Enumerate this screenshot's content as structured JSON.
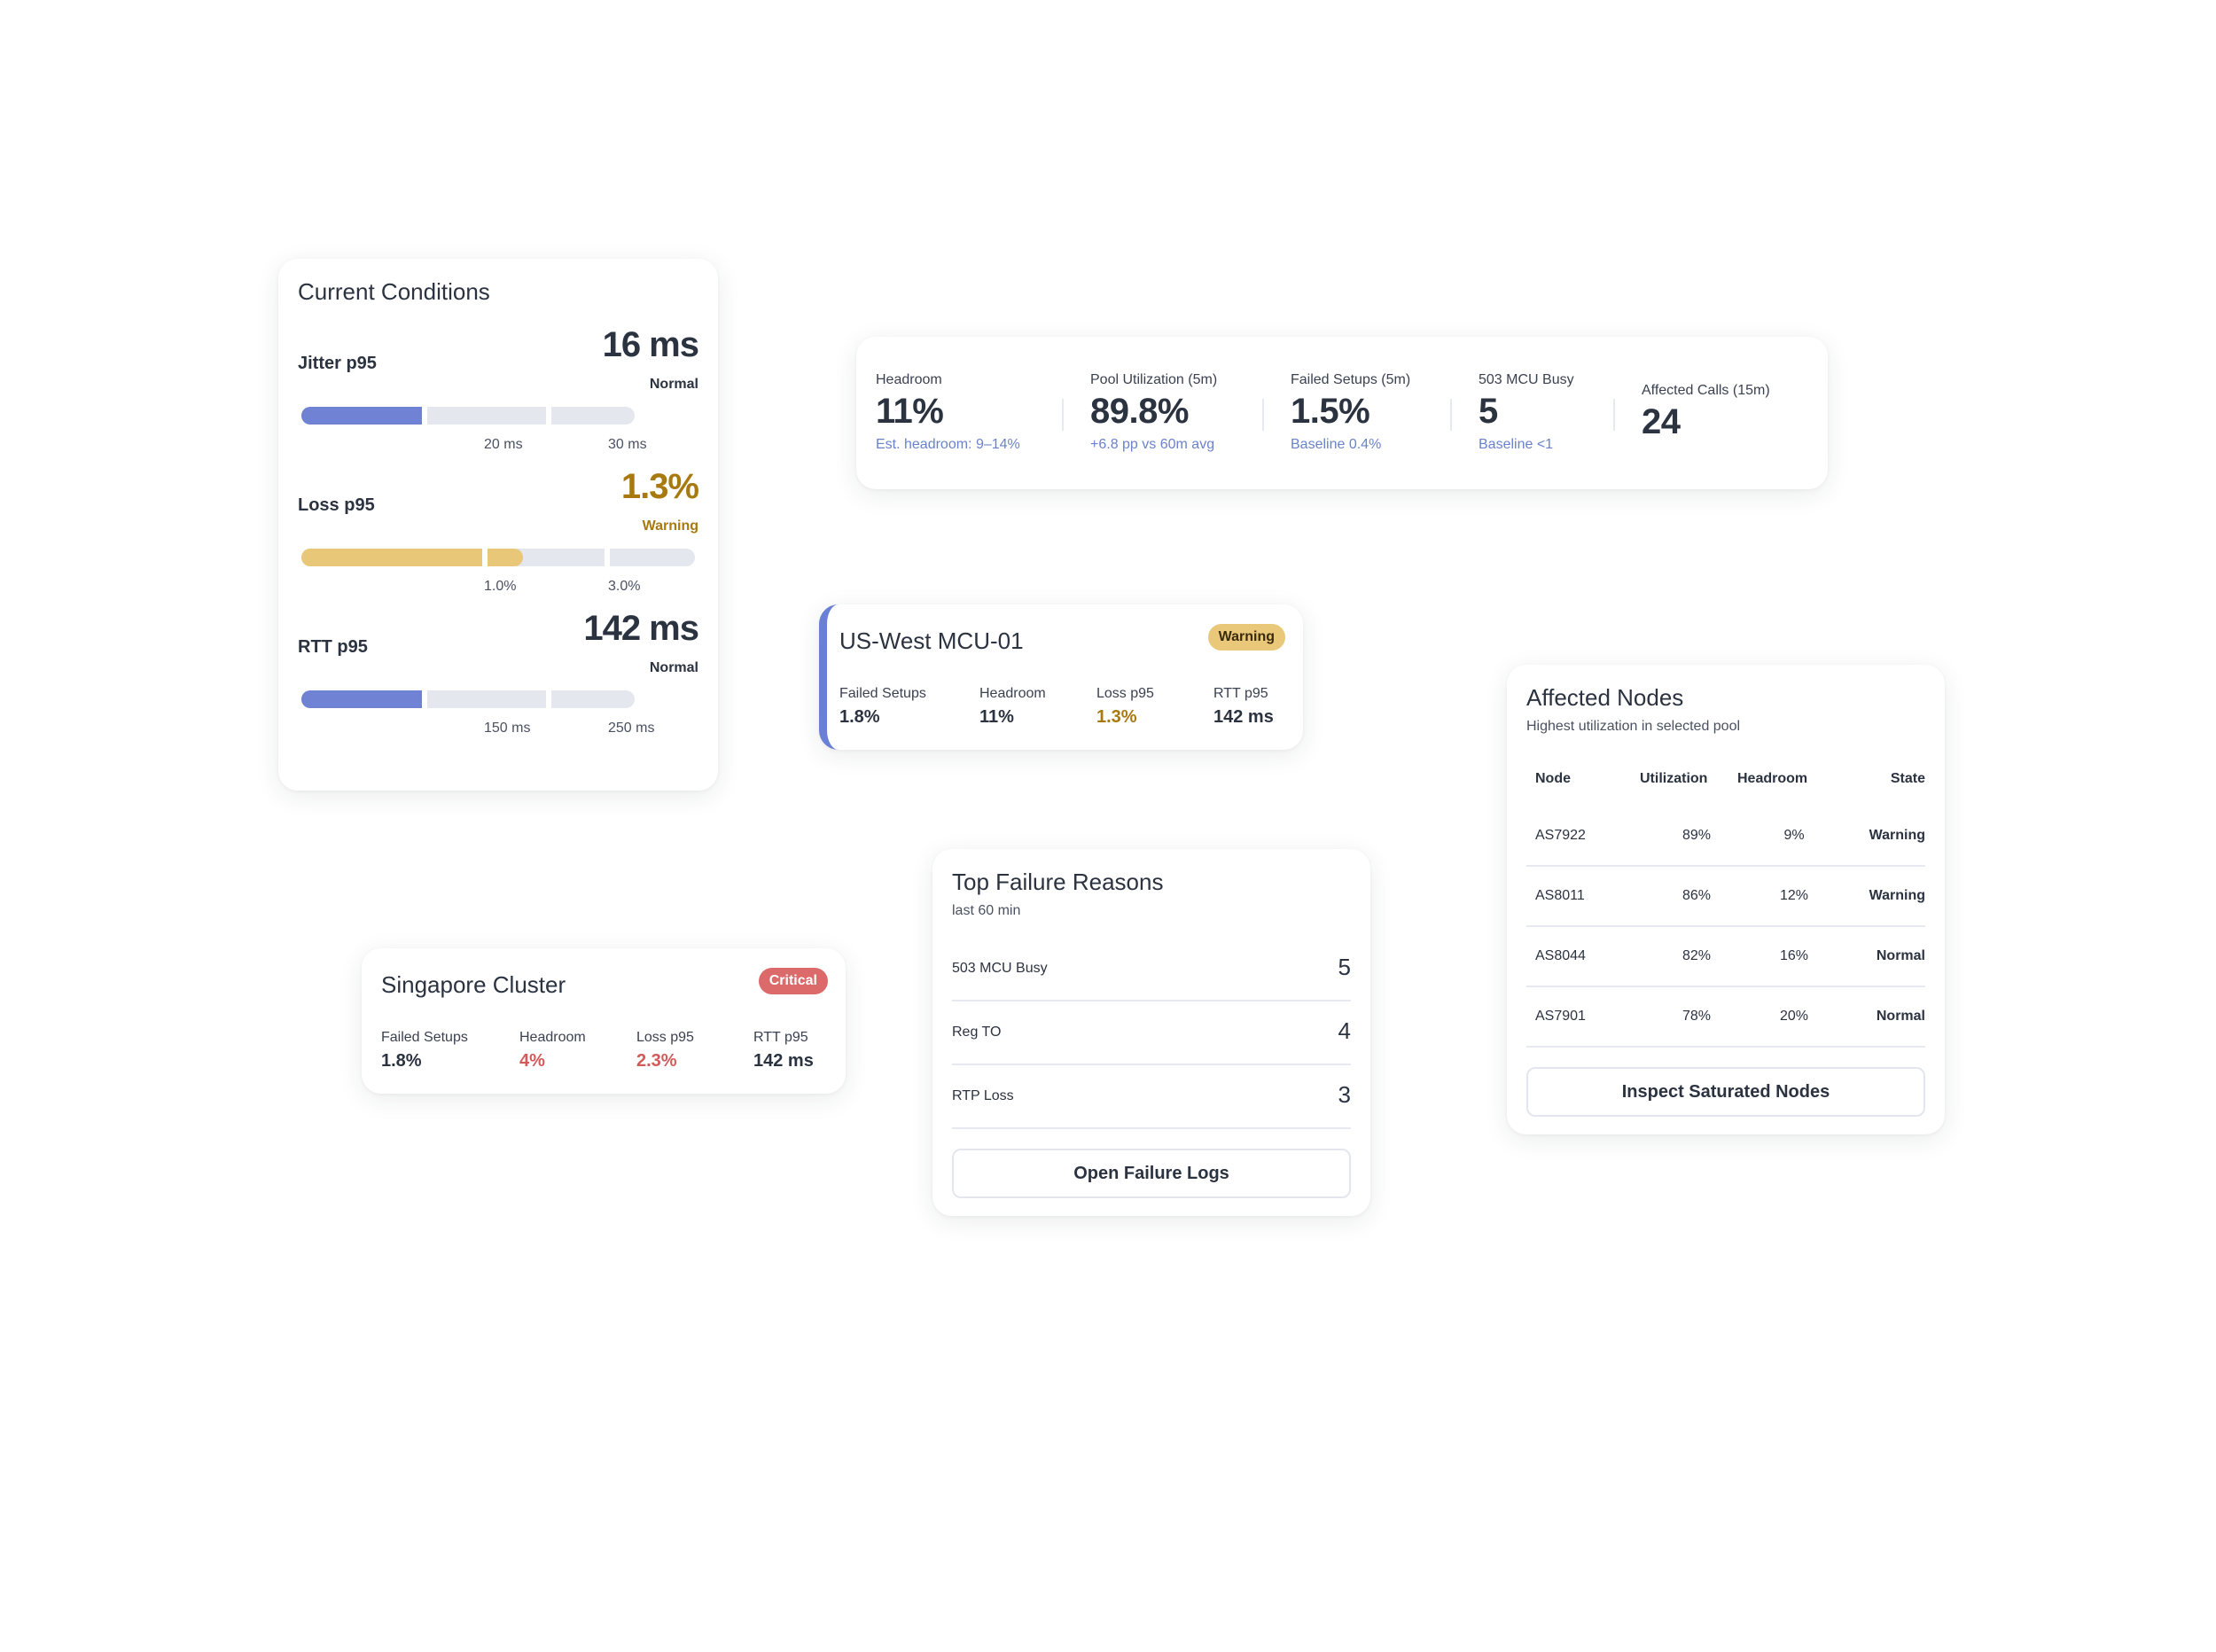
{
  "current_conditions": {
    "title": "Current Conditions",
    "metrics": [
      {
        "label": "Jitter p95",
        "value": "16 ms",
        "state": "Normal",
        "level": "normal",
        "ticks": [
          "20 ms",
          "30 ms"
        ],
        "segment_fill": [
          1.0,
          0.0,
          0.0
        ],
        "fill_color": "#6f82d4"
      },
      {
        "label": "Loss p95",
        "value": "1.3%",
        "state": "Warning",
        "level": "warning",
        "ticks": [
          "1.0%",
          "3.0%"
        ],
        "segment_fill": [
          1.0,
          0.3,
          0.0
        ],
        "fill_color": "#e8c878"
      },
      {
        "label": "RTT p95",
        "value": "142 ms",
        "state": "Normal",
        "level": "normal",
        "ticks": [
          "150 ms",
          "250 ms"
        ],
        "segment_fill": [
          1.0,
          0.0,
          0.0
        ],
        "fill_color": "#6f82d4"
      }
    ]
  },
  "kpis": [
    {
      "label": "Headroom",
      "value": "11%",
      "note": "Est. headroom: 9–14%"
    },
    {
      "label": "Pool Utilization (5m)",
      "value": "89.8%",
      "note": "+6.8 pp vs 60m avg"
    },
    {
      "label": "Failed Setups (5m)",
      "value": "1.5%",
      "note": "Baseline 0.4%"
    },
    {
      "label": "503 MCU Busy",
      "value": "5",
      "note": "Baseline <1"
    },
    {
      "label": "Affected Calls (15m)",
      "value": "24",
      "note": ""
    }
  ],
  "sites": {
    "us_west": {
      "name": "US-West MCU-01",
      "badge": "Warning",
      "stats": [
        {
          "label": "Failed Setups",
          "value": "1.8%",
          "level": "normal"
        },
        {
          "label": "Headroom",
          "value": "11%",
          "level": "normal"
        },
        {
          "label": "Loss p95",
          "value": "1.3%",
          "level": "warning"
        },
        {
          "label": "RTT p95",
          "value": "142 ms",
          "level": "normal"
        }
      ]
    },
    "singapore": {
      "name": "Singapore Cluster",
      "badge": "Critical",
      "stats": [
        {
          "label": "Failed Setups",
          "value": "1.8%",
          "level": "normal"
        },
        {
          "label": "Headroom",
          "value": "4%",
          "level": "critical"
        },
        {
          "label": "Loss p95",
          "value": "2.3%",
          "level": "critical"
        },
        {
          "label": "RTT p95",
          "value": "142 ms",
          "level": "normal"
        }
      ]
    }
  },
  "top_failures": {
    "title": "Top Failure Reasons",
    "subtitle": "last 60 min",
    "rows": [
      {
        "reason": "503 MCU Busy",
        "count": "5"
      },
      {
        "reason": "Reg TO",
        "count": "4"
      },
      {
        "reason": "RTP Loss",
        "count": "3"
      }
    ],
    "button_label": "Open Failure Logs"
  },
  "affected_nodes": {
    "title": "Affected Nodes",
    "subtitle": "Highest utilization in selected pool",
    "columns": [
      "Node",
      "Utilization",
      "Headroom",
      "State"
    ],
    "rows": [
      {
        "node": "AS7922",
        "utilization": "89%",
        "headroom": "9%",
        "state": "Warning"
      },
      {
        "node": "AS8011",
        "utilization": "86%",
        "headroom": "12%",
        "state": "Warning"
      },
      {
        "node": "AS8044",
        "utilization": "82%",
        "headroom": "16%",
        "state": "Normal"
      },
      {
        "node": "AS7901",
        "utilization": "78%",
        "headroom": "20%",
        "state": "Normal"
      }
    ],
    "button_label": "Inspect Saturated Nodes"
  },
  "colors": {
    "accent": "#6f82d4",
    "warning": "#a7790f",
    "warning_fill": "#e8c878",
    "critical": "#d35a5a",
    "track": "#e4e7ee"
  }
}
